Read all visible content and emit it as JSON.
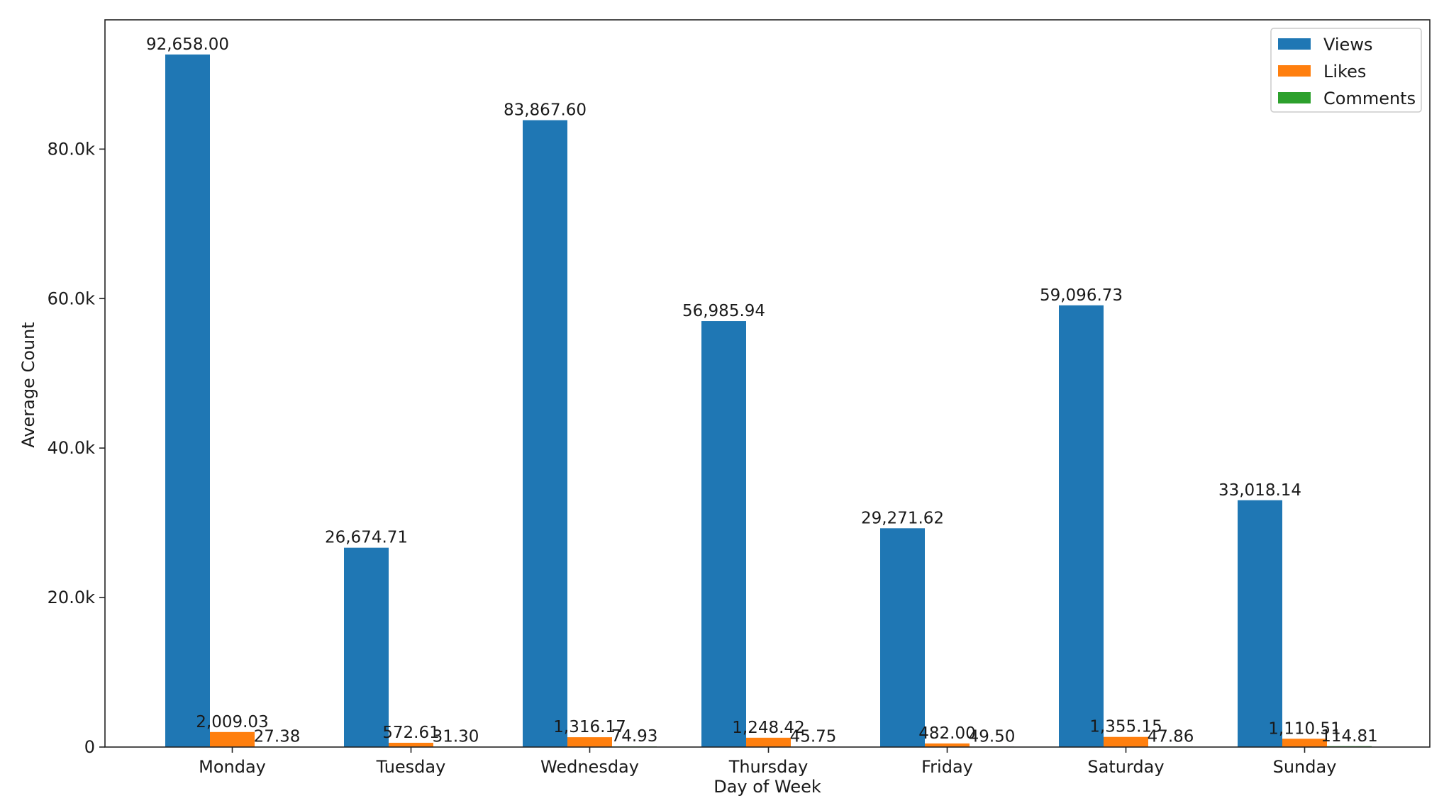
{
  "chart_data": {
    "type": "bar",
    "title": "",
    "xlabel": "Day of Week",
    "ylabel": "Average Count",
    "categories": [
      "Monday",
      "Tuesday",
      "Wednesday",
      "Thursday",
      "Friday",
      "Saturday",
      "Sunday"
    ],
    "series": [
      {
        "name": "Views",
        "color": "#1f77b4",
        "values": [
          92658.0,
          26674.71,
          83867.6,
          56985.94,
          29271.62,
          59096.73,
          33018.14
        ],
        "labels": [
          "92,658.00",
          "26,674.71",
          "83,867.60",
          "56,985.94",
          "29,271.62",
          "59,096.73",
          "33,018.14"
        ]
      },
      {
        "name": "Likes",
        "color": "#ff7f0e",
        "values": [
          2009.03,
          572.61,
          1316.17,
          1248.42,
          482.0,
          1355.15,
          1110.51
        ],
        "labels": [
          "2,009.03",
          "572.61",
          "1,316.17",
          "1,248.42",
          "482.00",
          "1,355.15",
          "1,110.51"
        ]
      },
      {
        "name": "Comments",
        "color": "#2ca02c",
        "values": [
          27.38,
          31.3,
          74.93,
          45.75,
          49.5,
          47.86,
          114.81
        ],
        "labels": [
          "27.38",
          "31.30",
          "74.93",
          "45.75",
          "49.50",
          "47.86",
          "114.81"
        ]
      }
    ],
    "yticks": [
      0,
      20000,
      40000,
      60000,
      80000
    ],
    "ytick_labels": [
      "0",
      "20.0k",
      "40.0k",
      "60.0k",
      "80.0k"
    ],
    "ylim": [
      0,
      97290.9
    ],
    "grid": false,
    "legend_position": "top-right"
  }
}
